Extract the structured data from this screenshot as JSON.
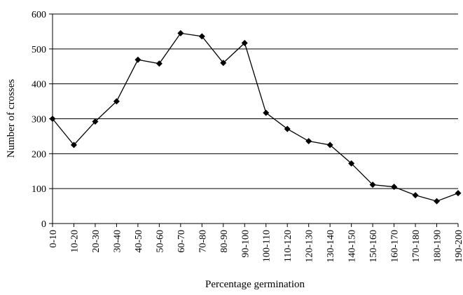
{
  "chart_data": {
    "type": "line",
    "title": "",
    "xlabel": "Percentage germination",
    "ylabel": "Number of crosses",
    "categories": [
      "0-10",
      "10-20",
      "20-30",
      "30-40",
      "40-50",
      "50-60",
      "60-70",
      "70-80",
      "80-90",
      "90-100",
      "100-110",
      "110-120",
      "120-130",
      "130-140",
      "140-150",
      "150-160",
      "160-170",
      "170-180",
      "180-190",
      "190-200"
    ],
    "series": [
      {
        "values": [
          300,
          225,
          292,
          350,
          469,
          458,
          545,
          536,
          460,
          517,
          317,
          271,
          236,
          225,
          172,
          111,
          105,
          81,
          64,
          87
        ]
      }
    ],
    "ylim": [
      0,
      600
    ],
    "yticks": [
      0,
      100,
      200,
      300,
      400,
      500,
      600
    ],
    "grid": "horizontal",
    "legend": "none",
    "line_color": "#000000",
    "marker": "diamond",
    "marker_color": "#000000"
  }
}
